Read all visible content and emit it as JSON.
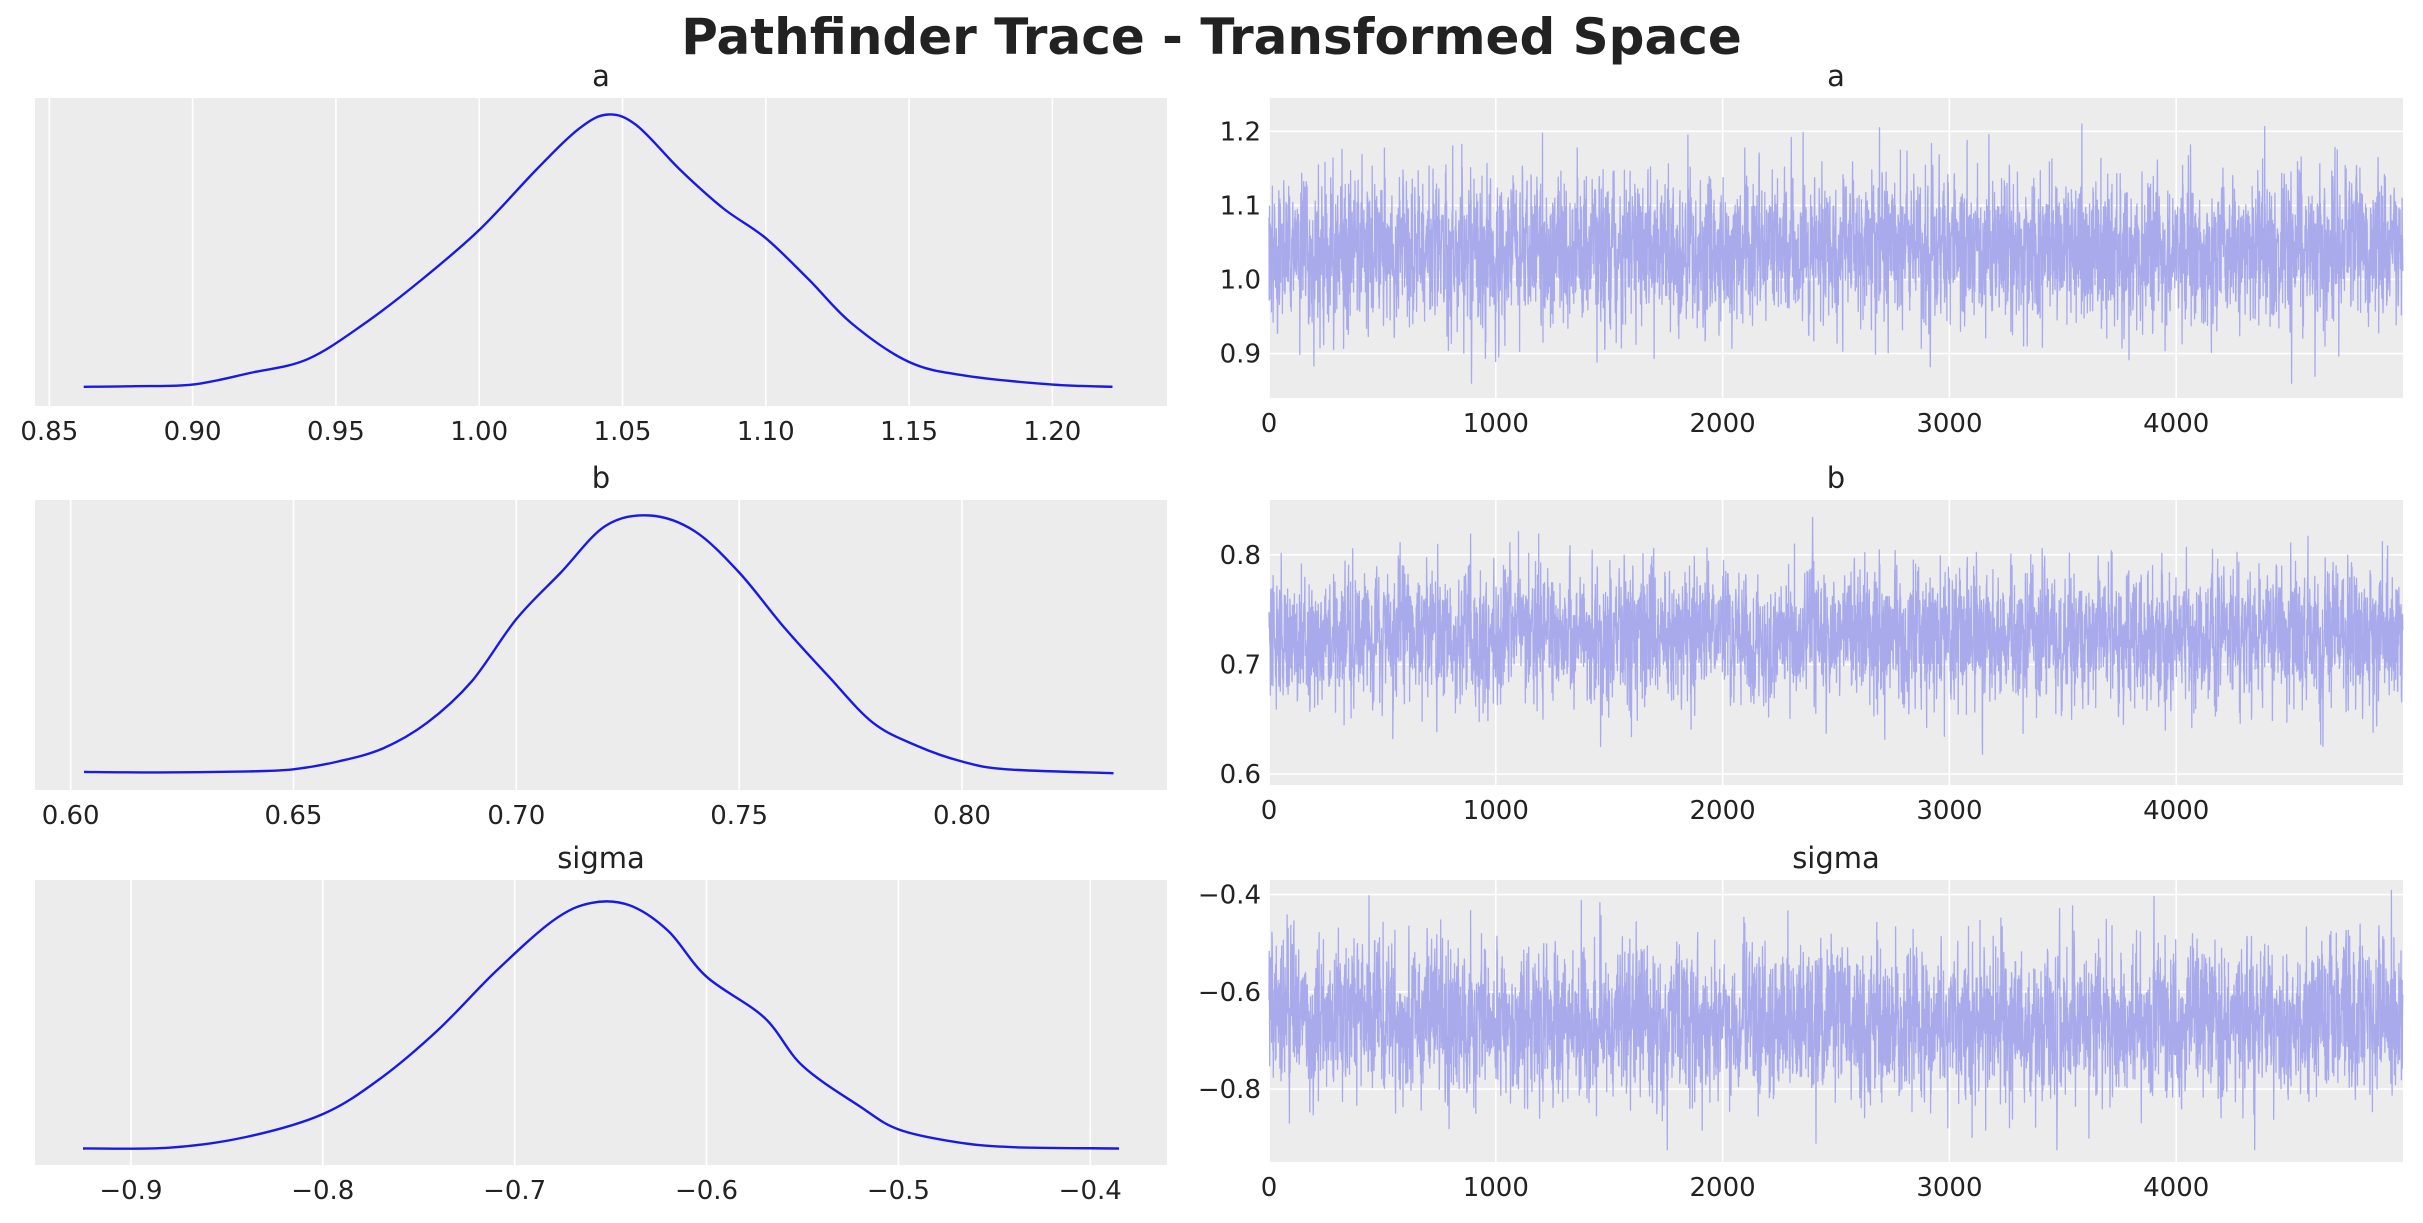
{
  "figure_title": "Pathfinder Trace - Transformed Space",
  "colors": {
    "kde": "#1a1ae6",
    "trace": "#a8aaec",
    "panel_bg": "#ececec",
    "grid": "#ffffff"
  },
  "chart_data": [
    {
      "type": "line",
      "title": "a",
      "xlabel": "",
      "ylabel": "",
      "xlim": [
        0.845,
        1.24
      ],
      "x_ticks": [
        0.85,
        0.9,
        0.95,
        1.0,
        1.05,
        1.1,
        1.15,
        1.2
      ],
      "x_tick_labels": [
        "0.85",
        "0.90",
        "0.95",
        "1.00",
        "1.05",
        "1.10",
        "1.15",
        "1.20"
      ],
      "y_ticks": [],
      "y_tick_labels": [],
      "grid": true,
      "series": [
        {
          "x": [
            0.862,
            0.88,
            0.9,
            0.92,
            0.94,
            0.96,
            0.98,
            1.0,
            1.02,
            1.035,
            1.045,
            1.055,
            1.07,
            1.085,
            1.1,
            1.115,
            1.13,
            1.15,
            1.17,
            1.2,
            1.221
          ],
          "y": [
            0.01,
            0.012,
            0.018,
            0.06,
            0.11,
            0.24,
            0.4,
            0.58,
            0.8,
            0.95,
            1.0,
            0.96,
            0.8,
            0.66,
            0.55,
            0.4,
            0.24,
            0.1,
            0.05,
            0.018,
            0.01
          ]
        }
      ]
    },
    {
      "type": "line",
      "title": "a",
      "xlabel": "",
      "ylabel": "",
      "xlim": [
        0,
        5000
      ],
      "ylim": [
        0.84,
        1.245
      ],
      "x_ticks": [
        0,
        1000,
        2000,
        3000,
        4000
      ],
      "x_tick_labels": [
        "0",
        "1000",
        "2000",
        "3000",
        "4000"
      ],
      "y_ticks": [
        0.9,
        1.0,
        1.1,
        1.2
      ],
      "y_tick_labels": [
        "0.9",
        "1.0",
        "1.1",
        "1.2"
      ],
      "grid": true,
      "trace": {
        "n_draws": 5000,
        "center": 1.04,
        "sd": 0.05,
        "min": 0.86,
        "max": 1.22
      }
    },
    {
      "type": "line",
      "title": "b",
      "xlabel": "",
      "ylabel": "",
      "xlim": [
        0.592,
        0.846
      ],
      "x_ticks": [
        0.6,
        0.65,
        0.7,
        0.75,
        0.8
      ],
      "x_tick_labels": [
        "0.60",
        "0.65",
        "0.70",
        "0.75",
        "0.80"
      ],
      "y_ticks": [],
      "y_tick_labels": [],
      "grid": true,
      "series": [
        {
          "x": [
            0.603,
            0.62,
            0.64,
            0.65,
            0.66,
            0.67,
            0.68,
            0.69,
            0.7,
            0.71,
            0.72,
            0.73,
            0.74,
            0.75,
            0.76,
            0.77,
            0.78,
            0.79,
            0.8,
            0.81,
            0.834
          ],
          "y": [
            0.01,
            0.008,
            0.012,
            0.02,
            0.05,
            0.1,
            0.2,
            0.36,
            0.6,
            0.78,
            0.96,
            1.0,
            0.94,
            0.78,
            0.57,
            0.38,
            0.2,
            0.11,
            0.05,
            0.02,
            0.005
          ]
        }
      ]
    },
    {
      "type": "line",
      "title": "b",
      "xlabel": "",
      "ylabel": "",
      "xlim": [
        0,
        5000
      ],
      "ylim": [
        0.59,
        0.85
      ],
      "x_ticks": [
        0,
        1000,
        2000,
        3000,
        4000
      ],
      "x_tick_labels": [
        "0",
        "1000",
        "2000",
        "3000",
        "4000"
      ],
      "y_ticks": [
        0.6,
        0.7,
        0.8
      ],
      "y_tick_labels": [
        "0.6",
        "0.7",
        "0.8"
      ],
      "grid": true,
      "trace": {
        "n_draws": 5000,
        "center": 0.726,
        "sd": 0.03,
        "min": 0.603,
        "max": 0.834
      }
    },
    {
      "type": "line",
      "title": "sigma",
      "xlabel": "",
      "ylabel": "",
      "xlim": [
        -0.95,
        -0.36
      ],
      "x_ticks": [
        -0.9,
        -0.8,
        -0.7,
        -0.6,
        -0.5,
        -0.4
      ],
      "x_tick_labels": [
        "−0.9",
        "−0.8",
        "−0.7",
        "−0.6",
        "−0.5",
        "−0.4"
      ],
      "y_ticks": [],
      "y_tick_labels": [],
      "grid": true,
      "series": [
        {
          "x": [
            -0.925,
            -0.88,
            -0.84,
            -0.8,
            -0.77,
            -0.74,
            -0.71,
            -0.68,
            -0.66,
            -0.64,
            -0.62,
            -0.6,
            -0.57,
            -0.55,
            -0.52,
            -0.5,
            -0.47,
            -0.44,
            -0.385
          ],
          "y": [
            0.005,
            0.008,
            0.05,
            0.14,
            0.28,
            0.47,
            0.7,
            0.9,
            0.97,
            0.96,
            0.86,
            0.68,
            0.52,
            0.33,
            0.17,
            0.08,
            0.03,
            0.01,
            0.005
          ]
        }
      ]
    },
    {
      "type": "line",
      "title": "sigma",
      "xlabel": "",
      "ylabel": "",
      "xlim": [
        0,
        5000
      ],
      "ylim": [
        -0.95,
        -0.37
      ],
      "x_ticks": [
        0,
        1000,
        2000,
        3000,
        4000
      ],
      "x_tick_labels": [
        "0",
        "1000",
        "2000",
        "3000",
        "4000"
      ],
      "y_ticks": [
        -0.8,
        -0.6,
        -0.4
      ],
      "y_tick_labels": [
        "−0.8",
        "−0.6",
        "−0.4"
      ],
      "grid": true,
      "trace": {
        "n_draws": 5000,
        "center": -0.66,
        "sd": 0.075,
        "min": -0.925,
        "max": -0.385
      }
    }
  ]
}
